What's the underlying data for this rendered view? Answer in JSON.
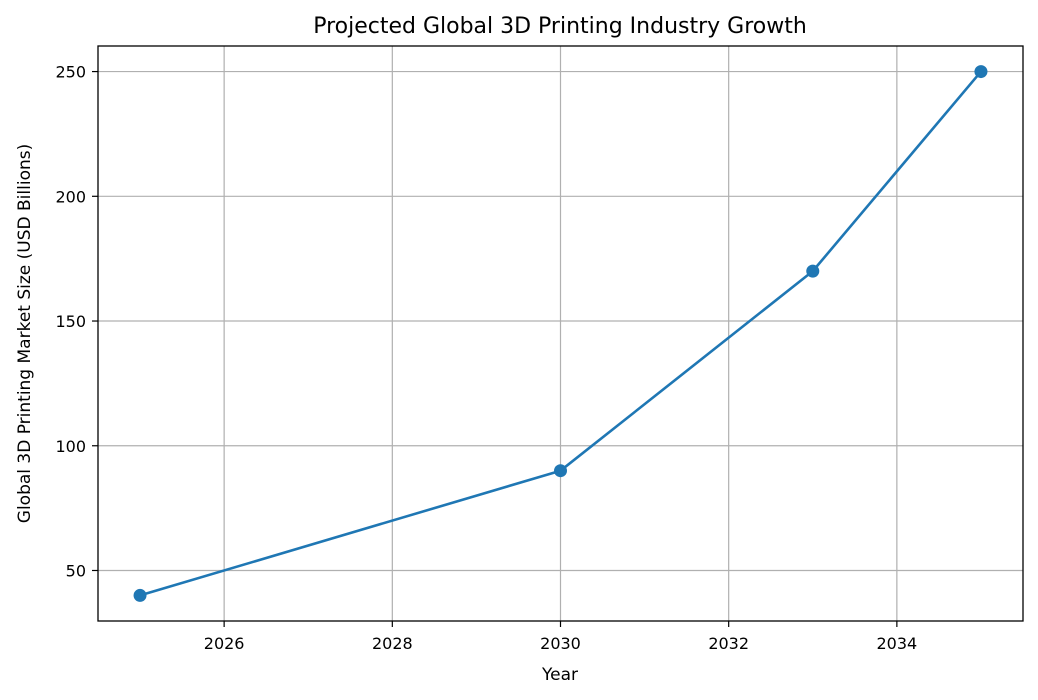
{
  "chart_data": {
    "type": "line",
    "title": "Projected Global 3D Printing Industry Growth",
    "xlabel": "Year",
    "ylabel": "Global 3D Printing Market Size (USD Billions)",
    "xlim": [
      2024.5,
      2035.5
    ],
    "ylim": [
      29.75,
      260.25
    ],
    "xticks": [
      2026,
      2028,
      2030,
      2032,
      2034
    ],
    "yticks": [
      50,
      100,
      150,
      200,
      250
    ],
    "grid": true,
    "legend": "none",
    "series": [
      {
        "color": "#1f77b4",
        "marker": "circle",
        "x": [
          2025,
          2030,
          2033,
          2035
        ],
        "y": [
          40,
          90,
          170,
          250
        ]
      }
    ]
  }
}
